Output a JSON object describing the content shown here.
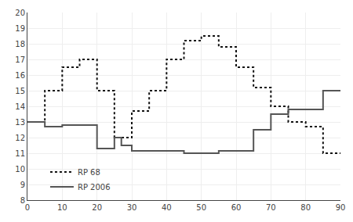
{
  "chart_data": {
    "type": "line",
    "series": [
      {
        "name": "RP 68",
        "color": "#111111",
        "line_style": "dotted",
        "x": [
          0,
          5,
          5,
          10,
          10,
          15,
          15,
          20,
          20,
          25,
          25,
          30,
          30,
          35,
          35,
          40,
          40,
          45,
          45,
          50,
          50,
          55,
          55,
          60,
          60,
          65,
          65,
          70,
          70,
          75,
          75,
          80,
          80,
          85,
          85,
          90
        ],
        "values": [
          13,
          13,
          15,
          15,
          16.5,
          16.5,
          17,
          17,
          15,
          15,
          12,
          12,
          13.7,
          13.7,
          15,
          15,
          17,
          17,
          18.2,
          18.2,
          18.5,
          18.5,
          17.8,
          17.8,
          16.5,
          16.5,
          15.2,
          15.2,
          14,
          14,
          13,
          13,
          12.7,
          12.7,
          11,
          11
        ]
      },
      {
        "name": "RP 2006",
        "color": "#555555",
        "line_style": "solid",
        "x": [
          0,
          5,
          5,
          10,
          10,
          20,
          20,
          25,
          25,
          27,
          27,
          30,
          30,
          45,
          45,
          55,
          55,
          65,
          65,
          70,
          70,
          75,
          75,
          85,
          85,
          90
        ],
        "values": [
          13,
          13,
          12.7,
          12.7,
          12.8,
          12.8,
          11.3,
          11.3,
          12.0,
          12.0,
          11.5,
          11.5,
          11.15,
          11.15,
          11.0,
          11.0,
          11.15,
          11.15,
          12.5,
          12.5,
          13.5,
          13.5,
          13.8,
          13.8,
          15,
          15
        ]
      }
    ],
    "xlim": [
      0,
      90
    ],
    "ylim": [
      8,
      20
    ],
    "xticks": [
      0,
      10,
      20,
      30,
      40,
      50,
      60,
      70,
      80,
      90
    ],
    "yticks": [
      8,
      9,
      10,
      11,
      12,
      13,
      14,
      15,
      16,
      17,
      18,
      19,
      20
    ],
    "grid": true,
    "legend": "lower left"
  }
}
